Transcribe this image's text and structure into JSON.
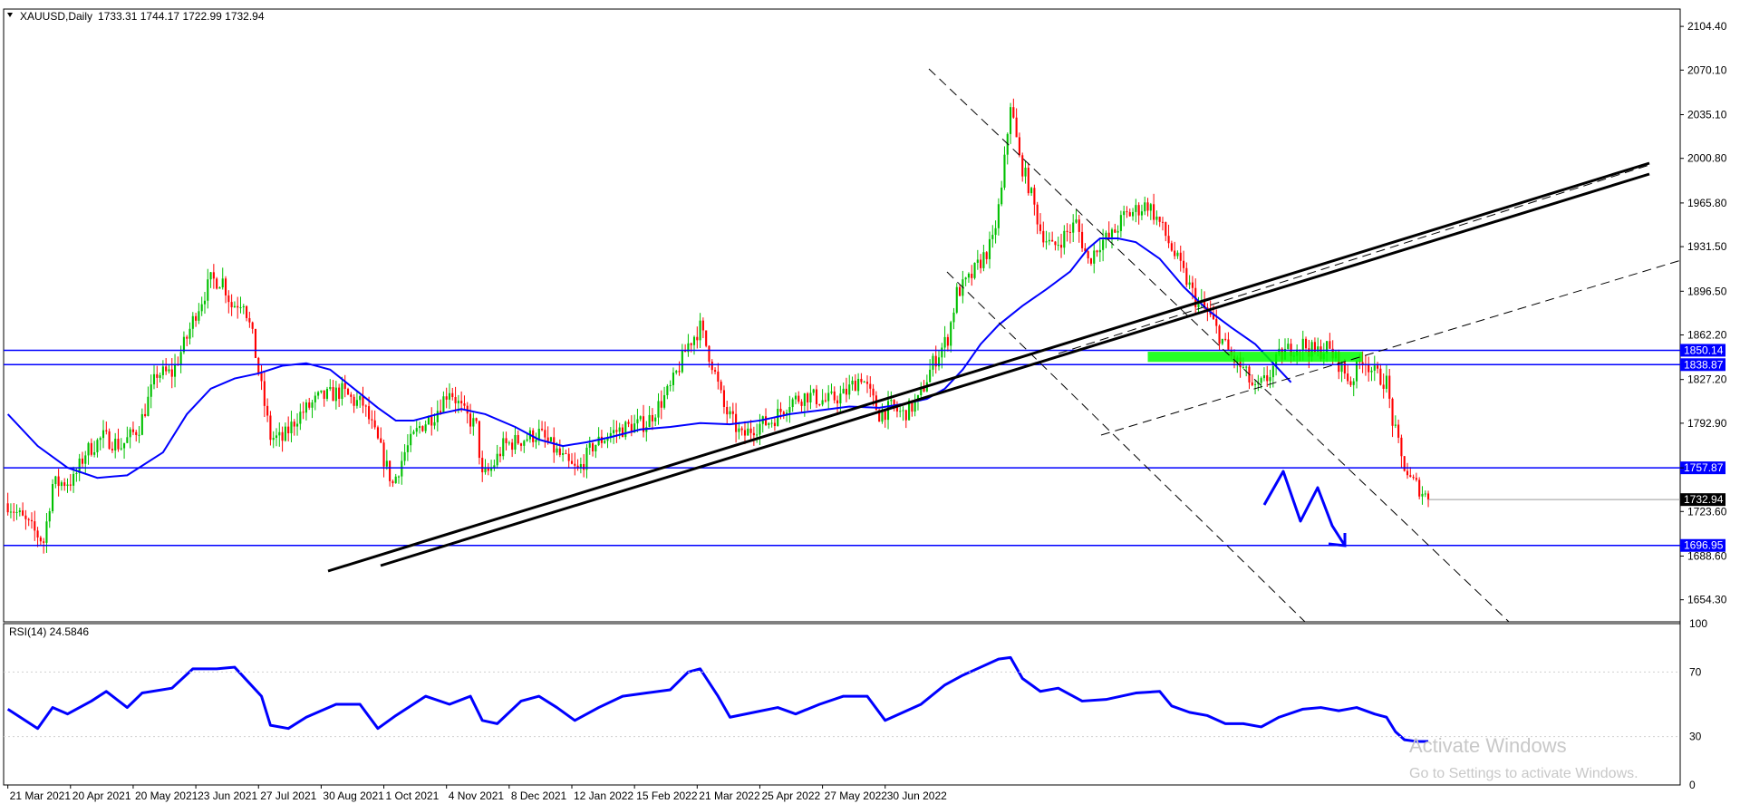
{
  "header": {
    "symbol": "XAUUSD,Daily",
    "ohlc": "1733.31 1744.17 1722.99 1732.94",
    "rsi_label": "RSI(14) 24.5846"
  },
  "watermark": {
    "line1": "Activate Windows",
    "line2": "Go to Settings to activate Windows."
  },
  "colors": {
    "candle_up": "#00c000",
    "candle_down": "#ff0000",
    "ma": "#0000ff",
    "rsi": "#0000ff",
    "level_line": "#0000ff",
    "trendline": "#000000",
    "zone": "#00ff00"
  },
  "chart_data": {
    "type": "candlestick",
    "symbol": "XAUUSD",
    "timeframe": "Daily",
    "x_tick_labels": [
      "21 Mar 2021",
      "20 Apr 2021",
      "20 May 2021",
      "23 Jun 2021",
      "27 Jul 2021",
      "30 Aug 2021",
      "1 Oct 2021",
      "4 Nov 2021",
      "8 Dec 2021",
      "12 Jan 2022",
      "15 Feb 2022",
      "21 Mar 2022",
      "25 Apr 2022",
      "27 May 2022",
      "30 Jun 2022"
    ],
    "y_tick_labels": [
      "2104.40",
      "2070.10",
      "2035.10",
      "2000.80",
      "1965.80",
      "1931.50",
      "1896.50",
      "1862.20",
      "1827.20",
      "1792.90",
      "1757.87",
      "1723.60",
      "1688.60",
      "1654.30"
    ],
    "ylim": [
      1637,
      2118
    ],
    "last_price": 1732.94,
    "price_path": [
      [
        0,
        1730
      ],
      [
        8,
        1710
      ],
      [
        12,
        1700
      ],
      [
        15,
        1745
      ],
      [
        22,
        1748
      ],
      [
        26,
        1770
      ],
      [
        32,
        1782
      ],
      [
        38,
        1775
      ],
      [
        44,
        1790
      ],
      [
        50,
        1832
      ],
      [
        55,
        1832
      ],
      [
        60,
        1860
      ],
      [
        63,
        1880
      ],
      [
        68,
        1905
      ],
      [
        72,
        1905
      ],
      [
        75,
        1885
      ],
      [
        79,
        1890
      ],
      [
        82,
        1860
      ],
      [
        85,
        1820
      ],
      [
        88,
        1782
      ],
      [
        92,
        1780
      ],
      [
        97,
        1798
      ],
      [
        104,
        1812
      ],
      [
        112,
        1818
      ],
      [
        116,
        1810
      ],
      [
        119,
        1808
      ],
      [
        124,
        1778
      ],
      [
        129,
        1745
      ],
      [
        133,
        1770
      ],
      [
        138,
        1790
      ],
      [
        143,
        1800
      ],
      [
        148,
        1820
      ],
      [
        153,
        1800
      ],
      [
        157,
        1790
      ],
      [
        159,
        1750
      ],
      [
        162,
        1757
      ],
      [
        166,
        1775
      ],
      [
        172,
        1780
      ],
      [
        178,
        1785
      ],
      [
        184,
        1770
      ],
      [
        188,
        1760
      ],
      [
        191,
        1755
      ],
      [
        196,
        1775
      ],
      [
        202,
        1785
      ],
      [
        208,
        1790
      ],
      [
        214,
        1793
      ],
      [
        222,
        1820
      ],
      [
        228,
        1855
      ],
      [
        232,
        1868
      ],
      [
        236,
        1840
      ],
      [
        240,
        1805
      ],
      [
        246,
        1782
      ],
      [
        250,
        1790
      ],
      [
        256,
        1795
      ],
      [
        262,
        1810
      ],
      [
        268,
        1815
      ],
      [
        274,
        1810
      ],
      [
        280,
        1815
      ],
      [
        286,
        1830
      ],
      [
        292,
        1800
      ],
      [
        296,
        1805
      ],
      [
        300,
        1800
      ],
      [
        305,
        1810
      ],
      [
        310,
        1840
      ],
      [
        315,
        1860
      ],
      [
        318,
        1895
      ],
      [
        322,
        1905
      ],
      [
        326,
        1920
      ],
      [
        330,
        1935
      ],
      [
        333,
        1975
      ],
      [
        336,
        2045
      ],
      [
        339,
        2000
      ],
      [
        342,
        1980
      ],
      [
        346,
        1945
      ],
      [
        350,
        1930
      ],
      [
        354,
        1940
      ],
      [
        358,
        1950
      ],
      [
        362,
        1920
      ],
      [
        366,
        1935
      ],
      [
        370,
        1940
      ],
      [
        374,
        1955
      ],
      [
        378,
        1960
      ],
      [
        382,
        1965
      ],
      [
        386,
        1950
      ],
      [
        390,
        1930
      ],
      [
        394,
        1910
      ],
      [
        398,
        1890
      ],
      [
        402,
        1880
      ],
      [
        406,
        1862
      ],
      [
        410,
        1845
      ],
      [
        414,
        1835
      ],
      [
        418,
        1818
      ],
      [
        422,
        1828
      ],
      [
        426,
        1845
      ],
      [
        430,
        1852
      ],
      [
        434,
        1855
      ],
      [
        438,
        1848
      ],
      [
        442,
        1852
      ],
      [
        446,
        1840
      ],
      [
        450,
        1825
      ],
      [
        454,
        1845
      ],
      [
        458,
        1832
      ],
      [
        462,
        1825
      ],
      [
        464,
        1795
      ],
      [
        467,
        1765
      ],
      [
        470,
        1748
      ],
      [
        473,
        1742
      ],
      [
        476,
        1733
      ]
    ],
    "series": [
      {
        "name": "RSI(14)",
        "role": "oscillator",
        "ylim": [
          0,
          100
        ],
        "values": [
          [
            0,
            47
          ],
          [
            10,
            35
          ],
          [
            15,
            48
          ],
          [
            20,
            44
          ],
          [
            28,
            52
          ],
          [
            33,
            58
          ],
          [
            40,
            48
          ],
          [
            45,
            57
          ],
          [
            55,
            60
          ],
          [
            62,
            72
          ],
          [
            70,
            72
          ],
          [
            76,
            73
          ],
          [
            80,
            65
          ],
          [
            85,
            55
          ],
          [
            88,
            37
          ],
          [
            94,
            35
          ],
          [
            100,
            42
          ],
          [
            110,
            50
          ],
          [
            118,
            50
          ],
          [
            124,
            35
          ],
          [
            130,
            43
          ],
          [
            140,
            55
          ],
          [
            148,
            50
          ],
          [
            155,
            55
          ],
          [
            159,
            40
          ],
          [
            164,
            38
          ],
          [
            172,
            52
          ],
          [
            178,
            55
          ],
          [
            184,
            48
          ],
          [
            190,
            40
          ],
          [
            198,
            48
          ],
          [
            206,
            55
          ],
          [
            214,
            57
          ],
          [
            222,
            59
          ],
          [
            228,
            70
          ],
          [
            232,
            72
          ],
          [
            238,
            55
          ],
          [
            242,
            42
          ],
          [
            250,
            45
          ],
          [
            258,
            48
          ],
          [
            264,
            44
          ],
          [
            272,
            50
          ],
          [
            280,
            55
          ],
          [
            288,
            55
          ],
          [
            294,
            40
          ],
          [
            300,
            45
          ],
          [
            306,
            50
          ],
          [
            314,
            62
          ],
          [
            320,
            68
          ],
          [
            326,
            73
          ],
          [
            332,
            78
          ],
          [
            336,
            79
          ],
          [
            340,
            66
          ],
          [
            346,
            58
          ],
          [
            352,
            60
          ],
          [
            360,
            52
          ],
          [
            368,
            53
          ],
          [
            378,
            57
          ],
          [
            386,
            58
          ],
          [
            390,
            49
          ],
          [
            396,
            45
          ],
          [
            402,
            43
          ],
          [
            408,
            38
          ],
          [
            414,
            38
          ],
          [
            420,
            36
          ],
          [
            426,
            42
          ],
          [
            434,
            47
          ],
          [
            440,
            48
          ],
          [
            446,
            46
          ],
          [
            452,
            48
          ],
          [
            458,
            44
          ],
          [
            462,
            42
          ],
          [
            465,
            33
          ],
          [
            468,
            28
          ],
          [
            472,
            27
          ],
          [
            476,
            27
          ]
        ]
      },
      {
        "name": "MA",
        "role": "overlay",
        "values": [
          [
            0,
            1800
          ],
          [
            10,
            1775
          ],
          [
            20,
            1758
          ],
          [
            30,
            1750
          ],
          [
            40,
            1752
          ],
          [
            52,
            1770
          ],
          [
            60,
            1800
          ],
          [
            68,
            1820
          ],
          [
            76,
            1828
          ],
          [
            84,
            1832
          ],
          [
            92,
            1838
          ],
          [
            100,
            1840
          ],
          [
            108,
            1835
          ],
          [
            116,
            1820
          ],
          [
            124,
            1805
          ],
          [
            130,
            1795
          ],
          [
            136,
            1795
          ],
          [
            144,
            1800
          ],
          [
            152,
            1804
          ],
          [
            160,
            1800
          ],
          [
            170,
            1790
          ],
          [
            178,
            1780
          ],
          [
            186,
            1775
          ],
          [
            194,
            1778
          ],
          [
            202,
            1782
          ],
          [
            212,
            1788
          ],
          [
            222,
            1790
          ],
          [
            232,
            1793
          ],
          [
            242,
            1792
          ],
          [
            252,
            1795
          ],
          [
            262,
            1800
          ],
          [
            272,
            1803
          ],
          [
            282,
            1806
          ],
          [
            292,
            1805
          ],
          [
            300,
            1808
          ],
          [
            308,
            1812
          ],
          [
            314,
            1820
          ],
          [
            320,
            1835
          ],
          [
            326,
            1855
          ],
          [
            332,
            1870
          ],
          [
            340,
            1885
          ],
          [
            348,
            1898
          ],
          [
            356,
            1912
          ],
          [
            362,
            1930
          ],
          [
            366,
            1938
          ],
          [
            372,
            1938
          ],
          [
            378,
            1935
          ],
          [
            386,
            1922
          ],
          [
            394,
            1900
          ],
          [
            402,
            1882
          ],
          [
            410,
            1868
          ],
          [
            418,
            1855
          ],
          [
            424,
            1840
          ],
          [
            430,
            1825
          ]
        ]
      }
    ],
    "horizontal_levels": [
      1850.14,
      1838.87,
      1757.87,
      1696.95
    ],
    "zone": {
      "x_start": 382,
      "x_end": 454,
      "low": 1841,
      "high": 1849
    }
  }
}
